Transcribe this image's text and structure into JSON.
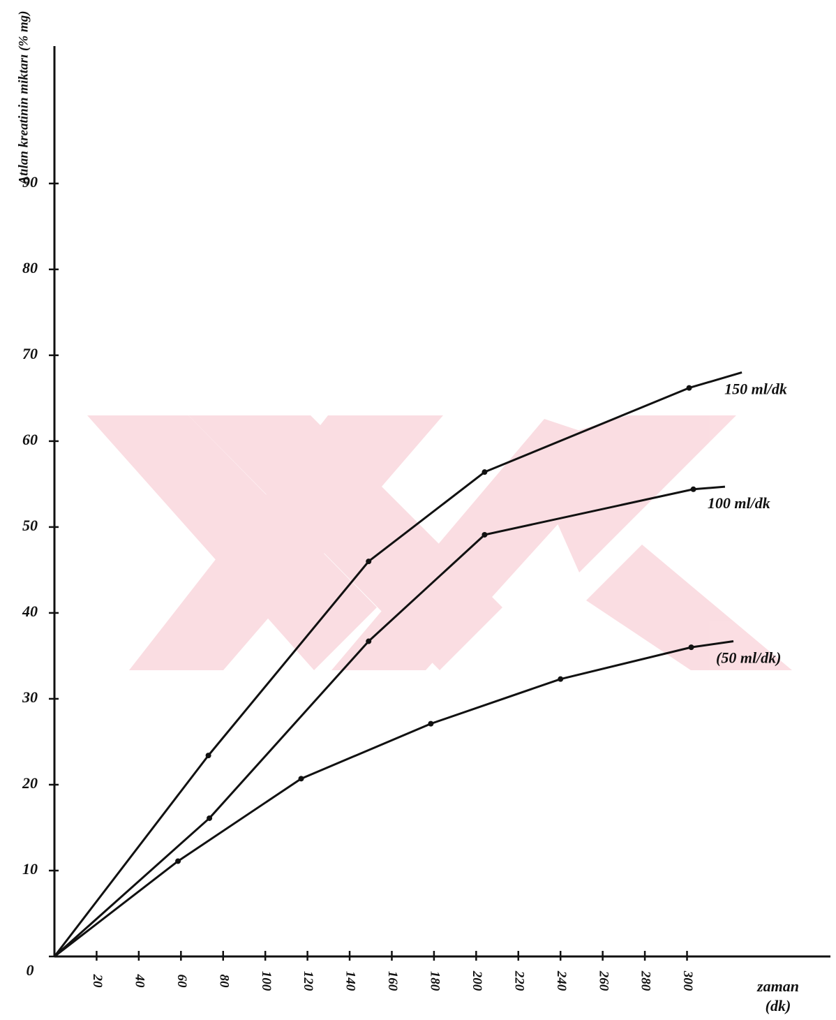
{
  "chart_data": {
    "type": "line",
    "ylabel": "Atılan kreatinin miktarı (% mg)",
    "xlabel": "zaman",
    "xlabel_unit": "(dk)",
    "xlim": [
      0,
      368
    ],
    "ylim": [
      0,
      106
    ],
    "xticks": [
      20,
      40,
      60,
      80,
      100,
      120,
      140,
      160,
      180,
      200,
      220,
      240,
      260,
      280,
      300
    ],
    "yticks": [
      0,
      10,
      20,
      30,
      40,
      50,
      60,
      70,
      80,
      90
    ],
    "series": [
      {
        "name": "150 ml/dk",
        "color": "#111111",
        "x": [
          0,
          73,
          149,
          204,
          301,
          326
        ],
        "values": [
          0,
          23.4,
          46,
          56.4,
          66.2,
          68
        ]
      },
      {
        "name": "100 ml/dk",
        "color": "#111111",
        "x": [
          0,
          73.5,
          149,
          204,
          303,
          318
        ],
        "values": [
          0,
          16.1,
          36.7,
          49.1,
          54.4,
          54.7
        ]
      },
      {
        "name": "(50 ml/dk)",
        "color": "#111111",
        "x": [
          0,
          58.6,
          117,
          178.5,
          240,
          302,
          322
        ],
        "values": [
          0,
          11.1,
          20.7,
          27.1,
          32.3,
          36,
          36.7
        ]
      }
    ]
  }
}
